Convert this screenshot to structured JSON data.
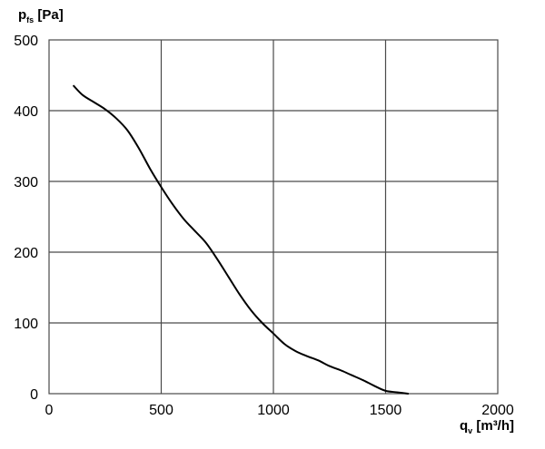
{
  "chart_data": {
    "type": "line",
    "ylabel": {
      "main": "p",
      "sub": "fs",
      "unit": " [Pa]"
    },
    "xlabel": {
      "main": "q",
      "sub": "v",
      "unit": " [m³/h]"
    },
    "xlim": [
      0,
      2000
    ],
    "ylim": [
      0,
      500
    ],
    "x_ticks": [
      0,
      500,
      1000,
      1500,
      2000
    ],
    "y_ticks": [
      0,
      100,
      200,
      300,
      400,
      500
    ],
    "x_tick_labels": [
      "0",
      "500",
      "1000",
      "1500",
      "2000"
    ],
    "y_tick_labels": [
      "0",
      "100",
      "200",
      "300",
      "400",
      "500"
    ],
    "grid": true,
    "series": [
      {
        "color": "#000000",
        "x": [
          110,
          150,
          200,
          250,
          300,
          350,
          400,
          450,
          500,
          550,
          600,
          650,
          700,
          750,
          800,
          850,
          900,
          950,
          1000,
          1050,
          1100,
          1150,
          1200,
          1250,
          1300,
          1350,
          1400,
          1450,
          1500,
          1550,
          1600
        ],
        "y": [
          435,
          422,
          412,
          402,
          389,
          372,
          347,
          318,
          292,
          268,
          247,
          230,
          213,
          190,
          165,
          140,
          118,
          100,
          85,
          70,
          60,
          53,
          47,
          39,
          33,
          26,
          19,
          11,
          4,
          2,
          0
        ]
      }
    ]
  }
}
